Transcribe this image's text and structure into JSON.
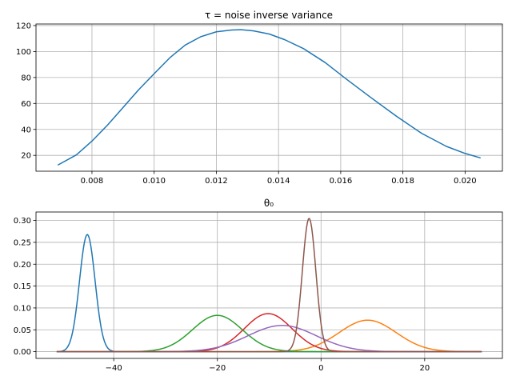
{
  "chart_data": [
    {
      "type": "line",
      "title": "τ = noise inverse variance",
      "xlabel": "",
      "ylabel": "",
      "xlim": [
        0.0062,
        0.0212
      ],
      "ylim": [
        7.8,
        121.2
      ],
      "xticks": [
        0.008,
        0.01,
        0.012,
        0.014,
        0.016,
        0.018,
        0.02
      ],
      "xtick_labels": [
        "0.008",
        "0.010",
        "0.012",
        "0.014",
        "0.016",
        "0.018",
        "0.020"
      ],
      "yticks": [
        20,
        40,
        60,
        80,
        100,
        120
      ],
      "ytick_labels": [
        "20",
        "40",
        "60",
        "80",
        "100",
        "120"
      ],
      "grid": true,
      "series": [
        {
          "color": "#1f77b4",
          "x": [
            0.0069,
            0.0075,
            0.008,
            0.0085,
            0.009,
            0.0095,
            0.01,
            0.0105,
            0.011,
            0.0115,
            0.012,
            0.0125,
            0.0128,
            0.0132,
            0.0137,
            0.0142,
            0.0148,
            0.0155,
            0.0162,
            0.017,
            0.0178,
            0.0186,
            0.0194,
            0.02,
            0.0205
          ],
          "y": [
            12.5,
            20.4,
            31.0,
            43.3,
            56.9,
            70.5,
            82.9,
            95.1,
            105.0,
            111.4,
            115.2,
            116.6,
            116.8,
            115.9,
            113.5,
            109.1,
            102.3,
            91.5,
            78.4,
            64.0,
            50.0,
            37.0,
            26.9,
            21.5,
            18.0
          ]
        }
      ]
    },
    {
      "type": "line",
      "title": "θ₀",
      "xlabel": "",
      "ylabel": "",
      "xlim": [
        -55,
        35
      ],
      "ylim": [
        -0.0154,
        0.3194
      ],
      "xticks": [
        -40,
        -20,
        0,
        20
      ],
      "xtick_labels": [
        "−40",
        "−20",
        "0",
        "20"
      ],
      "yticks": [
        0.0,
        0.05,
        0.1,
        0.15,
        0.2,
        0.25,
        0.3
      ],
      "ytick_labels": [
        "0.00",
        "0.05",
        "0.10",
        "0.15",
        "0.20",
        "0.25",
        "0.30"
      ],
      "grid": true,
      "x_range": [
        -51,
        31
      ],
      "series": [
        {
          "color": "#1f77b4",
          "mean": -45.1,
          "std": 1.5,
          "peak": 0.268
        },
        {
          "color": "#ff7f0e",
          "mean": 9.0,
          "std": 5.5,
          "peak": 0.072
        },
        {
          "color": "#2ca02c",
          "mean": -20.0,
          "std": 4.8,
          "peak": 0.083
        },
        {
          "color": "#d62728",
          "mean": -10.2,
          "std": 4.6,
          "peak": 0.087
        },
        {
          "color": "#9467bd",
          "mean": -7.5,
          "std": 6.6,
          "peak": 0.06
        },
        {
          "color": "#8c564b",
          "mean": -2.3,
          "std": 1.3,
          "peak": 0.305
        }
      ]
    }
  ]
}
